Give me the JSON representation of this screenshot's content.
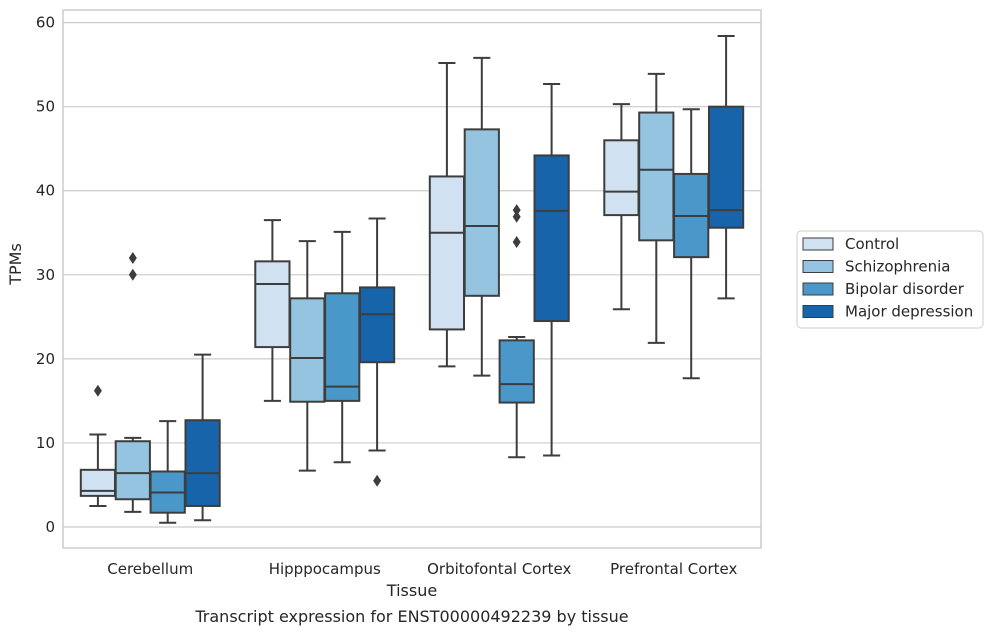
{
  "caption": "Transcript expression for ENST00000492239 by tissue",
  "chart_data": {
    "type": "box",
    "xlabel": "Tissue",
    "ylabel": "TPMs",
    "ylim": [
      -2.5,
      61.5
    ],
    "yticks": [
      0,
      10,
      20,
      30,
      40,
      50,
      60
    ],
    "grid": "horizontal",
    "legend_position": "right",
    "categories": [
      "Cerebellum",
      "Hipppocampus",
      "Orbitofontal Cortex",
      "Prefrontal Cortex"
    ],
    "series": [
      {
        "name": "Control",
        "color": "#d0e1f2",
        "boxes": [
          {
            "whislo": 2.5,
            "q1": 3.7,
            "med": 4.3,
            "q3": 6.8,
            "whishi": 11.0,
            "fliers": [
              16.2
            ]
          },
          {
            "whislo": 15.0,
            "q1": 21.4,
            "med": 28.9,
            "q3": 31.6,
            "whishi": 36.5,
            "fliers": []
          },
          {
            "whislo": 19.1,
            "q1": 23.5,
            "med": 35.0,
            "q3": 41.7,
            "whishi": 55.2,
            "fliers": []
          },
          {
            "whislo": 25.9,
            "q1": 37.1,
            "med": 39.9,
            "q3": 46.0,
            "whishi": 50.3,
            "fliers": []
          }
        ]
      },
      {
        "name": "Schizophrenia",
        "color": "#94c4df",
        "boxes": [
          {
            "whislo": 1.8,
            "q1": 3.3,
            "med": 6.4,
            "q3": 10.2,
            "whishi": 10.6,
            "fliers": [
              30.0,
              32.0
            ]
          },
          {
            "whislo": 6.7,
            "q1": 14.9,
            "med": 20.1,
            "q3": 27.2,
            "whishi": 34.0,
            "fliers": []
          },
          {
            "whislo": 18.0,
            "q1": 27.5,
            "med": 35.8,
            "q3": 47.3,
            "whishi": 55.8,
            "fliers": []
          },
          {
            "whislo": 21.9,
            "q1": 34.1,
            "med": 42.5,
            "q3": 49.3,
            "whishi": 53.9,
            "fliers": []
          }
        ]
      },
      {
        "name": "Bipolar disorder",
        "color": "#4a98c9",
        "boxes": [
          {
            "whislo": 0.5,
            "q1": 1.7,
            "med": 4.1,
            "q3": 6.6,
            "whishi": 12.6,
            "fliers": []
          },
          {
            "whislo": 7.7,
            "q1": 15.0,
            "med": 16.7,
            "q3": 27.8,
            "whishi": 35.1,
            "fliers": []
          },
          {
            "whislo": 8.3,
            "q1": 14.8,
            "med": 17.0,
            "q3": 22.2,
            "whishi": 22.6,
            "fliers": [
              33.9,
              36.9,
              37.7
            ]
          },
          {
            "whislo": 17.7,
            "q1": 32.1,
            "med": 37.0,
            "q3": 42.0,
            "whishi": 49.7,
            "fliers": []
          }
        ]
      },
      {
        "name": "Major depression",
        "color": "#1764ab",
        "boxes": [
          {
            "whislo": 0.8,
            "q1": 2.5,
            "med": 6.4,
            "q3": 12.7,
            "whishi": 20.5,
            "fliers": []
          },
          {
            "whislo": 9.1,
            "q1": 19.6,
            "med": 25.3,
            "q3": 28.5,
            "whishi": 36.7,
            "fliers": [
              5.5
            ]
          },
          {
            "whislo": 8.5,
            "q1": 24.5,
            "med": 37.6,
            "q3": 44.2,
            "whishi": 52.7,
            "fliers": []
          },
          {
            "whislo": 27.2,
            "q1": 35.6,
            "med": 37.7,
            "q3": 50.0,
            "whishi": 58.4,
            "fliers": []
          }
        ]
      }
    ]
  }
}
